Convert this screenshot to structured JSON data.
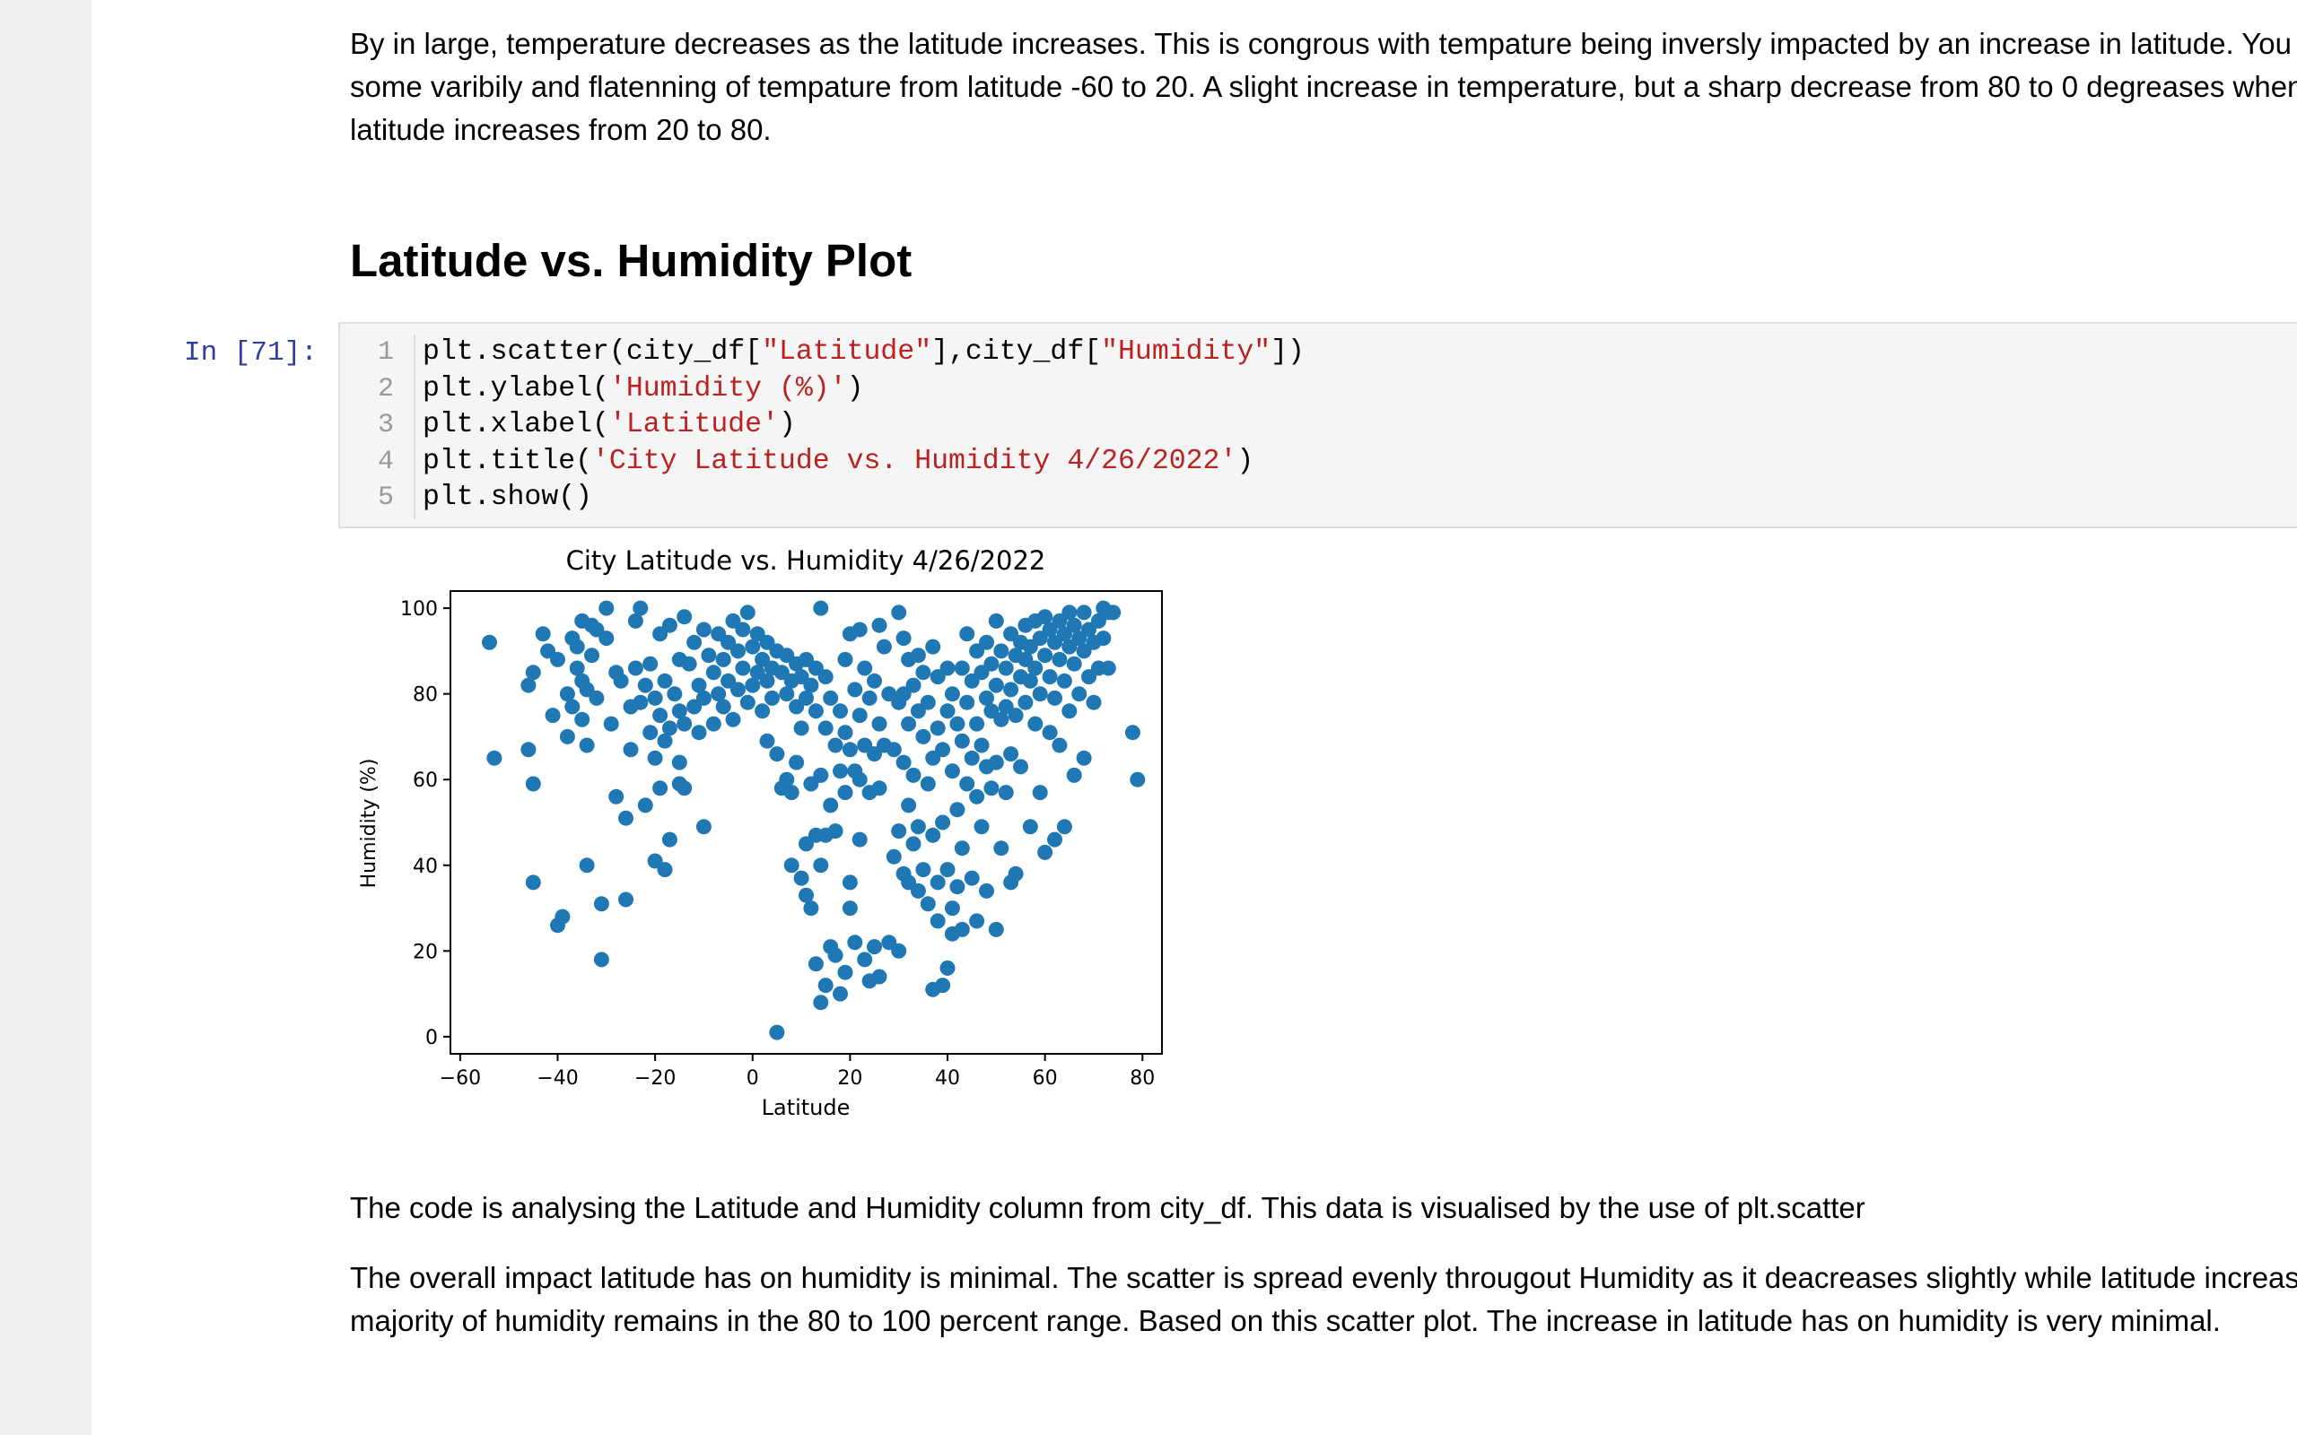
{
  "intro_text": {
    "lines": [
      "By in large, temperature decreases as the latitude increases. This is congrous with tempature being inversly impacted by an increase in latitude. You can see",
      "some varibily and flatenning of tempature from latitude -60 to 20. A slight increase in temperature, but a sharp decrease from 80 to 0 degreases when",
      "latitude increases from 20 to 80."
    ]
  },
  "section_heading": "Latitude vs. Humidity Plot",
  "code_cell": {
    "prompt": "In [71]:",
    "line_numbers": [
      "1",
      "2",
      "3",
      "4",
      "5"
    ],
    "lines": [
      [
        {
          "t": "plt.scatter(city_df[",
          "c": "plain"
        },
        {
          "t": "\"Latitude\"",
          "c": "str"
        },
        {
          "t": "],city_df[",
          "c": "plain"
        },
        {
          "t": "\"Humidity\"",
          "c": "str"
        },
        {
          "t": "])",
          "c": "plain"
        }
      ],
      [
        {
          "t": "plt.ylabel(",
          "c": "plain"
        },
        {
          "t": "'Humidity (%)'",
          "c": "str"
        },
        {
          "t": ")",
          "c": "plain"
        }
      ],
      [
        {
          "t": "plt.xlabel(",
          "c": "plain"
        },
        {
          "t": "'Latitude'",
          "c": "str"
        },
        {
          "t": ")",
          "c": "plain"
        }
      ],
      [
        {
          "t": "plt.title(",
          "c": "plain"
        },
        {
          "t": "'City Latitude vs. Humidity 4/26/2022'",
          "c": "str"
        },
        {
          "t": ")",
          "c": "plain"
        }
      ],
      [
        {
          "t": "plt.show()",
          "c": "plain"
        }
      ]
    ]
  },
  "colors": {
    "point": "#1f77b4",
    "prompt": "#303f9f",
    "string": "#ba2121",
    "cell_bg": "#f5f5f5",
    "gutter": "#eeeeee"
  },
  "chart_data": {
    "type": "scatter",
    "title": "City Latitude vs. Humidity 4/26/2022",
    "xlabel": "Latitude",
    "ylabel": "Humidity (%)",
    "xlim": [
      -62,
      84
    ],
    "ylim": [
      -4,
      104
    ],
    "xticks": [
      -60,
      -40,
      -20,
      0,
      20,
      40,
      60,
      80
    ],
    "yticks": [
      0,
      20,
      40,
      60,
      80,
      100
    ],
    "xtick_labels": [
      "−60",
      "−40",
      "−20",
      "0",
      "20",
      "40",
      "60",
      "80"
    ],
    "ytick_labels": [
      "0",
      "20",
      "40",
      "60",
      "80",
      "100"
    ],
    "grid": false,
    "legend": "none",
    "points": [
      [
        -54,
        92
      ],
      [
        -53,
        65
      ],
      [
        -46,
        82
      ],
      [
        -45,
        85
      ],
      [
        -46,
        67
      ],
      [
        -45,
        59
      ],
      [
        -45,
        36
      ],
      [
        -43,
        94
      ],
      [
        -42,
        90
      ],
      [
        -41,
        75
      ],
      [
        -40,
        88
      ],
      [
        -40,
        26
      ],
      [
        -39,
        28
      ],
      [
        -38,
        80
      ],
      [
        -38,
        70
      ],
      [
        -37,
        77
      ],
      [
        -37,
        93
      ],
      [
        -36,
        91
      ],
      [
        -36,
        86
      ],
      [
        -35,
        74
      ],
      [
        -35,
        83
      ],
      [
        -35,
        97
      ],
      [
        -34,
        81
      ],
      [
        -34,
        68
      ],
      [
        -34,
        40
      ],
      [
        -33,
        96
      ],
      [
        -33,
        89
      ],
      [
        -32,
        79
      ],
      [
        -32,
        95
      ],
      [
        -31,
        18
      ],
      [
        -31,
        31
      ],
      [
        -30,
        100
      ],
      [
        -30,
        93
      ],
      [
        -29,
        73
      ],
      [
        -28,
        85
      ],
      [
        -28,
        56
      ],
      [
        -27,
        83
      ],
      [
        -26,
        51
      ],
      [
        -26,
        32
      ],
      [
        -25,
        77
      ],
      [
        -25,
        67
      ],
      [
        -24,
        97
      ],
      [
        -24,
        86
      ],
      [
        -23,
        100
      ],
      [
        -23,
        78
      ],
      [
        -22,
        82
      ],
      [
        -22,
        54
      ],
      [
        -21,
        87
      ],
      [
        -21,
        71
      ],
      [
        -20,
        79
      ],
      [
        -20,
        65
      ],
      [
        -20,
        41
      ],
      [
        -19,
        94
      ],
      [
        -19,
        75
      ],
      [
        -19,
        58
      ],
      [
        -18,
        83
      ],
      [
        -18,
        69
      ],
      [
        -18,
        39
      ],
      [
        -17,
        96
      ],
      [
        -17,
        72
      ],
      [
        -17,
        46
      ],
      [
        -16,
        80
      ],
      [
        -15,
        88
      ],
      [
        -15,
        76
      ],
      [
        -15,
        59
      ],
      [
        -15,
        64
      ],
      [
        -14,
        98
      ],
      [
        -14,
        73
      ],
      [
        -14,
        58
      ],
      [
        -13,
        87
      ],
      [
        -12,
        92
      ],
      [
        -12,
        77
      ],
      [
        -11,
        82
      ],
      [
        -11,
        71
      ],
      [
        -10,
        95
      ],
      [
        -10,
        79
      ],
      [
        -10,
        49
      ],
      [
        -9,
        89
      ],
      [
        -8,
        85
      ],
      [
        -8,
        73
      ],
      [
        -7,
        94
      ],
      [
        -7,
        80
      ],
      [
        -6,
        88
      ],
      [
        -6,
        77
      ],
      [
        -5,
        92
      ],
      [
        -5,
        83
      ],
      [
        -4,
        97
      ],
      [
        -4,
        74
      ],
      [
        -3,
        90
      ],
      [
        -3,
        81
      ],
      [
        -2,
        95
      ],
      [
        -2,
        86
      ],
      [
        -1,
        78
      ],
      [
        -1,
        99
      ],
      [
        0,
        91
      ],
      [
        0,
        82
      ],
      [
        1,
        94
      ],
      [
        1,
        85
      ],
      [
        2,
        88
      ],
      [
        2,
        76
      ],
      [
        3,
        92
      ],
      [
        3,
        83
      ],
      [
        3,
        69
      ],
      [
        4,
        86
      ],
      [
        4,
        79
      ],
      [
        5,
        90
      ],
      [
        5,
        66
      ],
      [
        5,
        1
      ],
      [
        6,
        85
      ],
      [
        6,
        58
      ],
      [
        7,
        89
      ],
      [
        7,
        80
      ],
      [
        7,
        60
      ],
      [
        8,
        83
      ],
      [
        8,
        57
      ],
      [
        8,
        40
      ],
      [
        9,
        87
      ],
      [
        9,
        77
      ],
      [
        9,
        64
      ],
      [
        10,
        84
      ],
      [
        10,
        72
      ],
      [
        10,
        37
      ],
      [
        11,
        88
      ],
      [
        11,
        79
      ],
      [
        11,
        45
      ],
      [
        11,
        33
      ],
      [
        12,
        82
      ],
      [
        12,
        59
      ],
      [
        12,
        30
      ],
      [
        13,
        86
      ],
      [
        13,
        76
      ],
      [
        13,
        47
      ],
      [
        13,
        17
      ],
      [
        14,
        100
      ],
      [
        14,
        61
      ],
      [
        14,
        40
      ],
      [
        14,
        8
      ],
      [
        15,
        84
      ],
      [
        15,
        72
      ],
      [
        15,
        47
      ],
      [
        15,
        12
      ],
      [
        16,
        79
      ],
      [
        16,
        54
      ],
      [
        16,
        21
      ],
      [
        17,
        68
      ],
      [
        17,
        48
      ],
      [
        17,
        19
      ],
      [
        18,
        76
      ],
      [
        18,
        62
      ],
      [
        18,
        10
      ],
      [
        19,
        88
      ],
      [
        19,
        71
      ],
      [
        19,
        57
      ],
      [
        19,
        15
      ],
      [
        20,
        94
      ],
      [
        20,
        67
      ],
      [
        20,
        36
      ],
      [
        20,
        30
      ],
      [
        21,
        81
      ],
      [
        21,
        62
      ],
      [
        21,
        22
      ],
      [
        22,
        95
      ],
      [
        22,
        75
      ],
      [
        22,
        60
      ],
      [
        22,
        46
      ],
      [
        23,
        86
      ],
      [
        23,
        68
      ],
      [
        23,
        18
      ],
      [
        24,
        79
      ],
      [
        24,
        57
      ],
      [
        24,
        13
      ],
      [
        25,
        83
      ],
      [
        25,
        66
      ],
      [
        25,
        21
      ],
      [
        26,
        96
      ],
      [
        26,
        73
      ],
      [
        26,
        58
      ],
      [
        26,
        14
      ],
      [
        27,
        91
      ],
      [
        27,
        68
      ],
      [
        28,
        80
      ],
      [
        28,
        22
      ],
      [
        29,
        67
      ],
      [
        29,
        42
      ],
      [
        30,
        99
      ],
      [
        30,
        78
      ],
      [
        30,
        48
      ],
      [
        30,
        20
      ],
      [
        31,
        93
      ],
      [
        31,
        80
      ],
      [
        31,
        64
      ],
      [
        31,
        38
      ],
      [
        32,
        88
      ],
      [
        32,
        73
      ],
      [
        32,
        54
      ],
      [
        32,
        36
      ],
      [
        33,
        82
      ],
      [
        33,
        61
      ],
      [
        33,
        45
      ],
      [
        34,
        89
      ],
      [
        34,
        76
      ],
      [
        34,
        49
      ],
      [
        34,
        34
      ],
      [
        35,
        85
      ],
      [
        35,
        70
      ],
      [
        35,
        39
      ],
      [
        36,
        78
      ],
      [
        36,
        59
      ],
      [
        36,
        31
      ],
      [
        37,
        91
      ],
      [
        37,
        65
      ],
      [
        37,
        47
      ],
      [
        37,
        11
      ],
      [
        38,
        84
      ],
      [
        38,
        72
      ],
      [
        38,
        36
      ],
      [
        38,
        27
      ],
      [
        39,
        67
      ],
      [
        39,
        50
      ],
      [
        39,
        12
      ],
      [
        40,
        86
      ],
      [
        40,
        76
      ],
      [
        40,
        39
      ],
      [
        40,
        16
      ],
      [
        41,
        80
      ],
      [
        41,
        62
      ],
      [
        41,
        30
      ],
      [
        41,
        24
      ],
      [
        42,
        73
      ],
      [
        42,
        53
      ],
      [
        42,
        35
      ],
      [
        43,
        86
      ],
      [
        43,
        69
      ],
      [
        43,
        44
      ],
      [
        43,
        25
      ],
      [
        44,
        94
      ],
      [
        44,
        78
      ],
      [
        44,
        59
      ],
      [
        45,
        83
      ],
      [
        45,
        65
      ],
      [
        45,
        37
      ],
      [
        46,
        90
      ],
      [
        46,
        73
      ],
      [
        46,
        56
      ],
      [
        46,
        27
      ],
      [
        47,
        85
      ],
      [
        47,
        68
      ],
      [
        47,
        49
      ],
      [
        48,
        92
      ],
      [
        48,
        79
      ],
      [
        48,
        63
      ],
      [
        48,
        34
      ],
      [
        49,
        87
      ],
      [
        49,
        76
      ],
      [
        49,
        58
      ],
      [
        50,
        97
      ],
      [
        50,
        82
      ],
      [
        50,
        64
      ],
      [
        50,
        25
      ],
      [
        51,
        90
      ],
      [
        51,
        74
      ],
      [
        51,
        44
      ],
      [
        52,
        86
      ],
      [
        52,
        77
      ],
      [
        52,
        57
      ],
      [
        53,
        94
      ],
      [
        53,
        81
      ],
      [
        53,
        66
      ],
      [
        53,
        36
      ],
      [
        54,
        89
      ],
      [
        54,
        75
      ],
      [
        54,
        38
      ],
      [
        55,
        92
      ],
      [
        55,
        84
      ],
      [
        55,
        63
      ],
      [
        56,
        96
      ],
      [
        56,
        88
      ],
      [
        56,
        78
      ],
      [
        57,
        91
      ],
      [
        57,
        83
      ],
      [
        57,
        49
      ],
      [
        58,
        97
      ],
      [
        58,
        86
      ],
      [
        58,
        73
      ],
      [
        59,
        93
      ],
      [
        59,
        80
      ],
      [
        59,
        57
      ],
      [
        60,
        98
      ],
      [
        60,
        89
      ],
      [
        60,
        43
      ],
      [
        61,
        95
      ],
      [
        61,
        84
      ],
      [
        61,
        71
      ],
      [
        62,
        92
      ],
      [
        62,
        79
      ],
      [
        62,
        46
      ],
      [
        63,
        97
      ],
      [
        63,
        88
      ],
      [
        63,
        68
      ],
      [
        64,
        94
      ],
      [
        64,
        83
      ],
      [
        64,
        49
      ],
      [
        65,
        99
      ],
      [
        65,
        91
      ],
      [
        65,
        76
      ],
      [
        66,
        96
      ],
      [
        66,
        87
      ],
      [
        66,
        61
      ],
      [
        67,
        93
      ],
      [
        67,
        80
      ],
      [
        68,
        99
      ],
      [
        68,
        90
      ],
      [
        68,
        65
      ],
      [
        69,
        95
      ],
      [
        69,
        84
      ],
      [
        70,
        92
      ],
      [
        70,
        78
      ],
      [
        71,
        97
      ],
      [
        71,
        86
      ],
      [
        72,
        100
      ],
      [
        72,
        93
      ],
      [
        73,
        99
      ],
      [
        73,
        86
      ],
      [
        74,
        99
      ],
      [
        78,
        71
      ],
      [
        79,
        60
      ]
    ]
  },
  "analysis_text": {
    "p1": "The code is analysing the Latitude and Humidity column from city_df. This data is visualised by the use of plt.scatter",
    "p2_lines": [
      "The overall impact latitude has on humidity is minimal. The scatter is spread evenly througout Humidity as it deacreases slightly while latitude increases. The",
      "majority of humidity remains in the 80 to 100 percent range. Based on this scatter plot. The increase in latitude has on humidity is very minimal."
    ]
  }
}
